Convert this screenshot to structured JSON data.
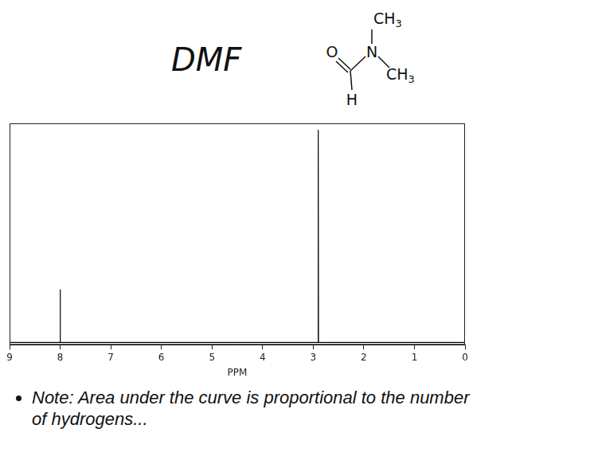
{
  "title": "DMF",
  "structure": {
    "oxygen": "O",
    "nitrogen": "N",
    "methyl_top": "CH3",
    "methyl_right": "CH3",
    "hydrogen": "H"
  },
  "chart_data": {
    "type": "line",
    "x_label": "PPM",
    "x": [
      9,
      8.02,
      8.005,
      8.0,
      7.995,
      7.98,
      2.92,
      2.905,
      2.9,
      2.895,
      2.88,
      0
    ],
    "values": [
      0.01,
      0.01,
      0.01,
      0.25,
      0.01,
      0.01,
      0.01,
      0.01,
      0.97,
      0.01,
      0.01,
      0.01
    ],
    "color": "#000000",
    "xlim": [
      9,
      0
    ],
    "xticks": [
      9,
      8,
      7,
      6,
      5,
      4,
      3,
      2,
      1,
      0
    ],
    "ylim": [
      0,
      1
    ],
    "grid": false,
    "tick_labels": "x"
  },
  "note": "Note: Area under the curve is proportional to the number of hydrogens..."
}
